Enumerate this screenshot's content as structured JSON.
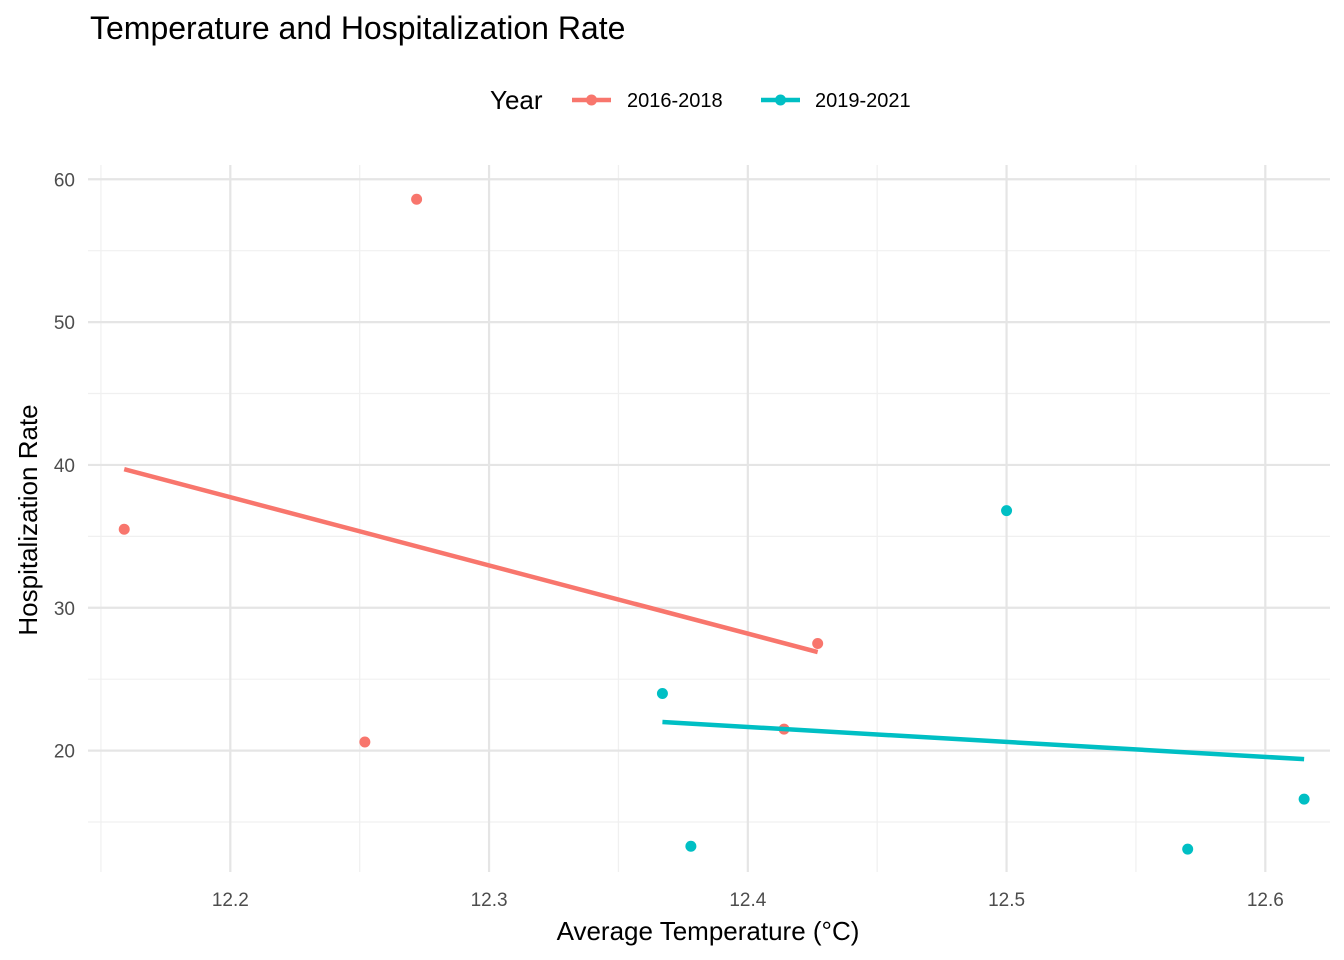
{
  "chart_data": {
    "type": "scatter",
    "title": "Temperature and Hospitalization Rate",
    "xlabel": "Average Temperature (°C)",
    "ylabel": "Hospitalization Rate",
    "xlim": [
      12.145,
      12.625
    ],
    "ylim": [
      11.5,
      61
    ],
    "x_ticks": [
      12.2,
      12.3,
      12.4,
      12.5,
      12.6
    ],
    "x_tick_labels": [
      "12.2",
      "12.3",
      "12.4",
      "12.5",
      "12.6"
    ],
    "x_minor": [
      12.15,
      12.25,
      12.35,
      12.45,
      12.55
    ],
    "y_ticks": [
      20,
      30,
      40,
      50,
      60
    ],
    "y_tick_labels": [
      "20",
      "30",
      "40",
      "50",
      "60"
    ],
    "y_minor": [
      15,
      25,
      35,
      45,
      55
    ],
    "grid": true,
    "legend": {
      "title": "Year",
      "position": "top"
    },
    "series": [
      {
        "name": "2016-2018",
        "color": "#F8766D",
        "points": [
          {
            "x": 12.159,
            "y": 35.5
          },
          {
            "x": 12.252,
            "y": 20.6
          },
          {
            "x": 12.272,
            "y": 58.6
          },
          {
            "x": 12.414,
            "y": 21.5
          },
          {
            "x": 12.427,
            "y": 27.5
          }
        ],
        "trend": {
          "x": [
            12.159,
            12.427
          ],
          "y": [
            39.7,
            26.9
          ]
        }
      },
      {
        "name": "2019-2021",
        "color": "#00BFC4",
        "points": [
          {
            "x": 12.367,
            "y": 24.0
          },
          {
            "x": 12.378,
            "y": 13.3
          },
          {
            "x": 12.5,
            "y": 36.8
          },
          {
            "x": 12.57,
            "y": 13.1
          },
          {
            "x": 12.615,
            "y": 16.6
          }
        ],
        "trend": {
          "x": [
            12.367,
            12.615
          ],
          "y": [
            22.0,
            19.4
          ]
        }
      }
    ]
  }
}
